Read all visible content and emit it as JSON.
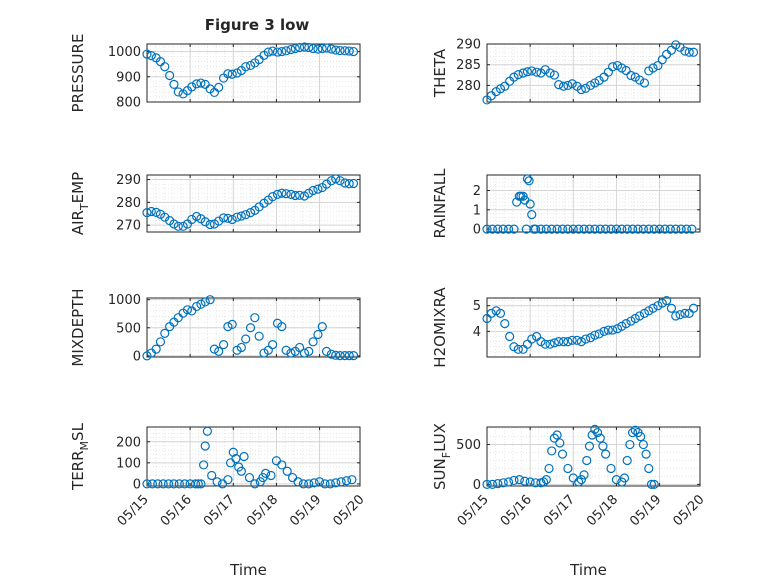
{
  "figure": {
    "title": "Figure 3 low",
    "marker_color": "#0072bd"
  },
  "chart_data": [
    {
      "type": "scatter",
      "ylabel": "PRESSURE",
      "ylabel_sub": "",
      "ylabel_tail": "",
      "xlim": [
        0,
        3.95
      ],
      "ylim": [
        800,
        1030
      ],
      "yticks": [
        800,
        900,
        1000
      ],
      "yticklabels": [
        "800",
        "900",
        "1000"
      ],
      "x_ticks": [],
      "grid": true,
      "x": [
        0,
        0.08,
        0.17,
        0.25,
        0.33,
        0.42,
        0.5,
        0.58,
        0.67,
        0.75,
        0.83,
        0.92,
        1.0,
        1.08,
        1.17,
        1.25,
        1.33,
        1.42,
        1.5,
        1.58,
        1.67,
        1.75,
        1.83,
        1.92,
        2.0,
        2.08,
        2.17,
        2.25,
        2.33,
        2.42,
        2.5,
        2.58,
        2.67,
        2.75,
        2.83,
        2.92,
        3.0,
        3.08,
        3.17,
        3.25,
        3.33,
        3.42,
        3.5,
        3.58,
        3.67,
        3.75,
        3.83
      ],
      "y": [
        990,
        984,
        975,
        960,
        940,
        905,
        870,
        840,
        832,
        845,
        860,
        872,
        875,
        870,
        852,
        838,
        858,
        895,
        912,
        910,
        915,
        925,
        940,
        945,
        955,
        968,
        985,
        998,
        1002,
        998,
        1000,
        1003,
        1008,
        1012,
        1016,
        1018,
        1016,
        1012,
        1010,
        1012,
        1014,
        1010,
        1006,
        1004,
        1003,
        1002,
        1000
      ]
    },
    {
      "type": "scatter",
      "ylabel": "THETA",
      "ylabel_sub": "",
      "ylabel_tail": "",
      "xlim": [
        0,
        3.95
      ],
      "ylim": [
        276,
        290
      ],
      "yticks": [
        280,
        285,
        290
      ],
      "yticklabels": [
        "280",
        "285",
        "290"
      ],
      "x_ticks": [],
      "grid": true,
      "x": [
        0,
        0.08,
        0.17,
        0.25,
        0.33,
        0.42,
        0.5,
        0.58,
        0.67,
        0.75,
        0.83,
        0.92,
        1.0,
        1.08,
        1.17,
        1.25,
        1.33,
        1.42,
        1.5,
        1.58,
        1.67,
        1.75,
        1.83,
        1.92,
        2.0,
        2.08,
        2.17,
        2.25,
        2.33,
        2.42,
        2.5,
        2.58,
        2.67,
        2.75,
        2.83,
        2.92,
        3.0,
        3.08,
        3.17,
        3.25,
        3.33,
        3.42,
        3.5,
        3.58,
        3.67,
        3.75,
        3.83
      ],
      "y": [
        276.5,
        277.5,
        278.5,
        279.2,
        279.8,
        281,
        282,
        282.6,
        283,
        283.3,
        283.5,
        283.2,
        283,
        283.8,
        283,
        282.5,
        280.2,
        279.8,
        280,
        280.4,
        279.8,
        279,
        279.3,
        280,
        280.6,
        281.2,
        282,
        283.2,
        284.5,
        284.8,
        284.2,
        283.6,
        282.4,
        282,
        281.3,
        280.6,
        283.5,
        284.2,
        284.8,
        286.2,
        287.5,
        288.5,
        289.8,
        289.2,
        288.3,
        288,
        288
      ]
    },
    {
      "type": "scatter",
      "ylabel": "AIR",
      "ylabel_sub": "T",
      "ylabel_tail": "EMP",
      "xlim": [
        0,
        3.95
      ],
      "ylim": [
        267,
        292
      ],
      "yticks": [
        270,
        280,
        290
      ],
      "yticklabels": [
        "270",
        "280",
        "290"
      ],
      "x_ticks": [],
      "grid": true,
      "x": [
        0,
        0.08,
        0.17,
        0.25,
        0.33,
        0.42,
        0.5,
        0.58,
        0.67,
        0.75,
        0.83,
        0.92,
        1.0,
        1.08,
        1.17,
        1.25,
        1.33,
        1.42,
        1.5,
        1.58,
        1.67,
        1.75,
        1.83,
        1.92,
        2.0,
        2.08,
        2.17,
        2.25,
        2.33,
        2.42,
        2.5,
        2.58,
        2.67,
        2.75,
        2.83,
        2.92,
        3.0,
        3.08,
        3.17,
        3.25,
        3.33,
        3.42,
        3.5,
        3.58,
        3.67,
        3.75,
        3.83
      ],
      "y": [
        275.5,
        276,
        275.6,
        274.8,
        273.5,
        272,
        270.5,
        269.5,
        269.5,
        270.5,
        272.5,
        273.8,
        272.8,
        271.5,
        270.3,
        270.5,
        271.8,
        273.2,
        273,
        272.5,
        273.5,
        274,
        274.6,
        275.5,
        276.5,
        278,
        279.6,
        281,
        282.5,
        283.5,
        284,
        283.8,
        283.5,
        283,
        283.1,
        282.8,
        284,
        285.2,
        285.8,
        286.5,
        288,
        289.5,
        290.3,
        289.5,
        288.5,
        288.2,
        288.3
      ]
    },
    {
      "type": "scatter",
      "ylabel": "RAINFALL",
      "ylabel_sub": "",
      "ylabel_tail": "",
      "xlim": [
        0,
        3.95
      ],
      "ylim": [
        -0.15,
        2.8
      ],
      "yticks": [
        0,
        1,
        2
      ],
      "yticklabels": [
        "0",
        "1",
        "2"
      ],
      "x_ticks": [],
      "grid": true,
      "x": [
        0,
        0.1,
        0.2,
        0.3,
        0.4,
        0.5,
        0.55,
        0.6,
        0.63,
        0.67,
        0.7,
        0.73,
        0.75,
        0.78,
        0.8,
        0.83,
        0.87,
        0.9,
        1.0,
        1.1,
        1.2,
        1.3,
        1.4,
        1.5,
        1.6,
        1.7,
        1.8,
        1.9,
        2.0,
        2.1,
        2.2,
        2.3,
        2.4,
        2.5,
        2.6,
        2.7,
        2.8,
        2.9,
        3.0,
        3.1,
        3.2,
        3.3,
        3.4,
        3.5,
        3.6,
        3.7,
        3.8
      ],
      "y": [
        0,
        0,
        0,
        0,
        0,
        0,
        1.4,
        1.7,
        1.7,
        1.7,
        1.5,
        0,
        2.6,
        2.5,
        1.3,
        0.75,
        0,
        0,
        0,
        0,
        0,
        0,
        0,
        0,
        0,
        0,
        0,
        0,
        0,
        0,
        0,
        0,
        0,
        0,
        0,
        0,
        0,
        0,
        0,
        0,
        0,
        0,
        0,
        0,
        0,
        0,
        0
      ]
    },
    {
      "type": "scatter",
      "ylabel": "MIXDEPTH",
      "ylabel_sub": "",
      "ylabel_tail": "",
      "xlim": [
        0,
        3.95
      ],
      "ylim": [
        -20,
        1030
      ],
      "yticks": [
        0,
        500,
        1000
      ],
      "yticklabels": [
        "0",
        "500",
        "1000"
      ],
      "x_ticks": [],
      "grid": true,
      "x": [
        0,
        0.08,
        0.17,
        0.25,
        0.33,
        0.42,
        0.5,
        0.58,
        0.67,
        0.75,
        0.83,
        0.92,
        1.0,
        1.08,
        1.17,
        1.25,
        1.33,
        1.42,
        1.5,
        1.58,
        1.67,
        1.75,
        1.83,
        1.92,
        2.0,
        2.08,
        2.17,
        2.25,
        2.33,
        2.42,
        2.5,
        2.58,
        2.67,
        2.75,
        2.83,
        2.92,
        3.0,
        3.08,
        3.17,
        3.25,
        3.33,
        3.42,
        3.5,
        3.58,
        3.67,
        3.75,
        3.83
      ],
      "y": [
        0,
        50,
        120,
        250,
        400,
        520,
        600,
        680,
        760,
        820,
        800,
        880,
        920,
        960,
        1000,
        120,
        80,
        200,
        520,
        560,
        100,
        150,
        300,
        500,
        680,
        350,
        50,
        100,
        200,
        580,
        520,
        100,
        50,
        80,
        150,
        50,
        80,
        250,
        380,
        520,
        80,
        30,
        10,
        5,
        5,
        5,
        5
      ]
    },
    {
      "type": "scatter",
      "ylabel": "H2OMIXRA",
      "ylabel_sub": "",
      "ylabel_tail": "",
      "xlim": [
        0,
        3.95
      ],
      "ylim": [
        3.0,
        5.3
      ],
      "yticks": [
        4,
        5
      ],
      "yticklabels": [
        "4",
        "5"
      ],
      "x_ticks": [],
      "grid": true,
      "x": [
        0,
        0.08,
        0.17,
        0.25,
        0.33,
        0.42,
        0.5,
        0.58,
        0.67,
        0.75,
        0.83,
        0.92,
        1.0,
        1.08,
        1.17,
        1.25,
        1.33,
        1.42,
        1.5,
        1.58,
        1.67,
        1.75,
        1.83,
        1.92,
        2.0,
        2.08,
        2.17,
        2.25,
        2.33,
        2.42,
        2.5,
        2.58,
        2.67,
        2.75,
        2.83,
        2.92,
        3.0,
        3.08,
        3.17,
        3.25,
        3.33,
        3.42,
        3.5,
        3.58,
        3.67,
        3.75,
        3.83
      ],
      "y": [
        4.5,
        4.7,
        4.8,
        4.7,
        4.3,
        3.8,
        3.4,
        3.3,
        3.3,
        3.5,
        3.7,
        3.8,
        3.6,
        3.5,
        3.5,
        3.55,
        3.6,
        3.6,
        3.6,
        3.65,
        3.65,
        3.6,
        3.7,
        3.75,
        3.85,
        3.9,
        4.0,
        4.05,
        4.05,
        4.1,
        4.2,
        4.3,
        4.4,
        4.5,
        4.6,
        4.7,
        4.8,
        4.9,
        5.0,
        5.1,
        5.2,
        4.9,
        4.6,
        4.65,
        4.7,
        4.7,
        4.9
      ]
    },
    {
      "type": "scatter",
      "ylabel": "TERR",
      "ylabel_sub": "M",
      "ylabel_tail": "SL",
      "xlim": [
        0,
        3.95
      ],
      "ylim": [
        -10,
        270
      ],
      "yticks": [
        0,
        100,
        200
      ],
      "yticklabels": [
        "0",
        "100",
        "200"
      ],
      "x_ticks": [
        0,
        0.8,
        1.6,
        2.4,
        3.2,
        4.0
      ],
      "x_tick_labels": [
        "05/15",
        "05/16",
        "05/17",
        "05/18",
        "05/19",
        "05/20"
      ],
      "xlabel": "Time",
      "grid": true,
      "x": [
        0,
        0.1,
        0.2,
        0.3,
        0.4,
        0.5,
        0.6,
        0.7,
        0.8,
        0.9,
        0.95,
        1.0,
        1.05,
        1.08,
        1.12,
        1.2,
        1.3,
        1.4,
        1.5,
        1.55,
        1.6,
        1.65,
        1.7,
        1.75,
        1.8,
        1.9,
        2.0,
        2.1,
        2.15,
        2.2,
        2.3,
        2.4,
        2.5,
        2.6,
        2.7,
        2.8,
        2.9,
        3.0,
        3.1,
        3.2,
        3.3,
        3.4,
        3.5,
        3.6,
        3.7,
        3.8
      ],
      "y": [
        0,
        0,
        0,
        0,
        0,
        0,
        0,
        0,
        0,
        0,
        0,
        0,
        90,
        180,
        250,
        40,
        10,
        0,
        20,
        100,
        150,
        120,
        80,
        60,
        130,
        30,
        0,
        10,
        30,
        50,
        40,
        110,
        90,
        60,
        30,
        10,
        0,
        0,
        5,
        10,
        0,
        0,
        5,
        10,
        15,
        20
      ]
    },
    {
      "type": "scatter",
      "ylabel": "SUN",
      "ylabel_sub": "F",
      "ylabel_tail": "LUX",
      "xlim": [
        0,
        3.95
      ],
      "ylim": [
        -20,
        720
      ],
      "yticks": [
        0,
        500
      ],
      "yticklabels": [
        "0",
        "500"
      ],
      "x_ticks": [
        0,
        0.8,
        1.6,
        2.4,
        3.2,
        4.0
      ],
      "x_tick_labels": [
        "05/15",
        "05/16",
        "05/17",
        "05/18",
        "05/19",
        "05/20"
      ],
      "xlabel": "Time",
      "grid": true,
      "x": [
        0,
        0.1,
        0.2,
        0.3,
        0.4,
        0.5,
        0.6,
        0.7,
        0.8,
        0.9,
        1.0,
        1.05,
        1.1,
        1.15,
        1.2,
        1.25,
        1.3,
        1.35,
        1.4,
        1.5,
        1.6,
        1.7,
        1.75,
        1.8,
        1.85,
        1.9,
        1.95,
        2.0,
        2.05,
        2.1,
        2.15,
        2.2,
        2.3,
        2.4,
        2.5,
        2.55,
        2.6,
        2.65,
        2.7,
        2.75,
        2.8,
        2.85,
        2.9,
        2.95,
        3.0,
        3.05,
        3.1
      ],
      "y": [
        0,
        0,
        10,
        20,
        30,
        50,
        60,
        40,
        30,
        20,
        20,
        30,
        60,
        200,
        420,
        580,
        620,
        520,
        380,
        200,
        80,
        30,
        60,
        120,
        300,
        480,
        620,
        690,
        650,
        580,
        480,
        380,
        200,
        60,
        30,
        80,
        300,
        500,
        650,
        680,
        650,
        600,
        500,
        380,
        200,
        0,
        0
      ]
    }
  ]
}
